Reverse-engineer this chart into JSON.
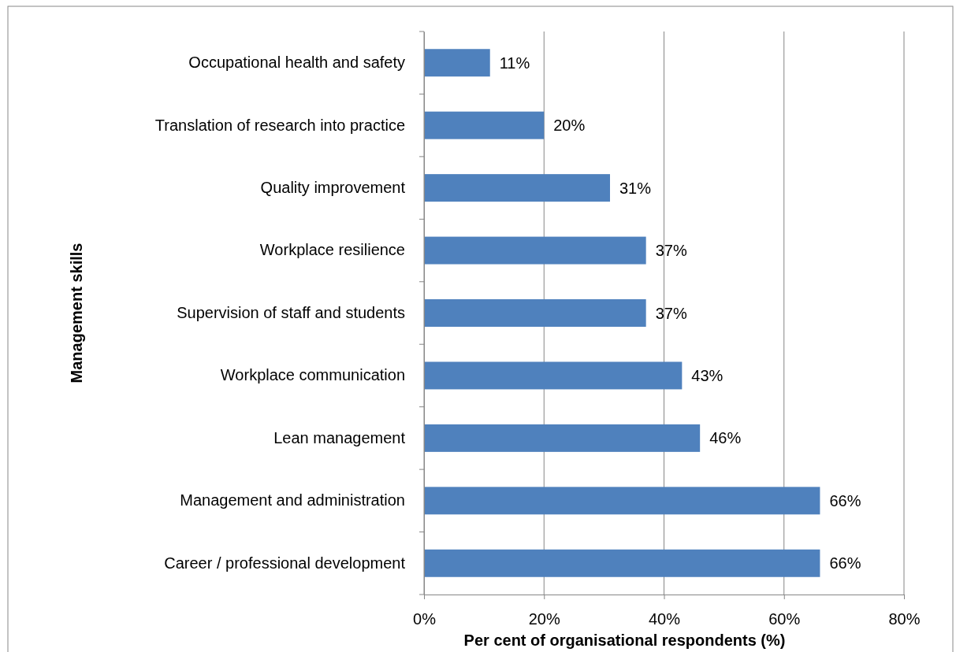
{
  "chart_data": {
    "type": "bar",
    "orientation": "horizontal",
    "xlabel": "Per cent of organisational respondents (%)",
    "ylabel": "Management skills",
    "categories": [
      "Occupational health and safety",
      "Translation of research into practice",
      "Quality improvement",
      "Workplace resilience",
      "Supervision of staff and students",
      "Workplace communication",
      "Lean management",
      "Management and administration",
      "Career / professional development"
    ],
    "values": [
      11,
      20,
      31,
      37,
      37,
      43,
      46,
      66,
      66
    ],
    "value_labels": [
      "11%",
      "20%",
      "31%",
      "37%",
      "37%",
      "43%",
      "46%",
      "66%",
      "66%"
    ],
    "color": "#4f81bd",
    "xlim": [
      0,
      80
    ],
    "xticks": [
      {
        "value": 0,
        "label": "0%"
      },
      {
        "value": 20,
        "label": "20%"
      },
      {
        "value": 40,
        "label": "40%"
      },
      {
        "value": 60,
        "label": "60%"
      },
      {
        "value": 80,
        "label": "80%"
      }
    ],
    "grid": "x"
  }
}
